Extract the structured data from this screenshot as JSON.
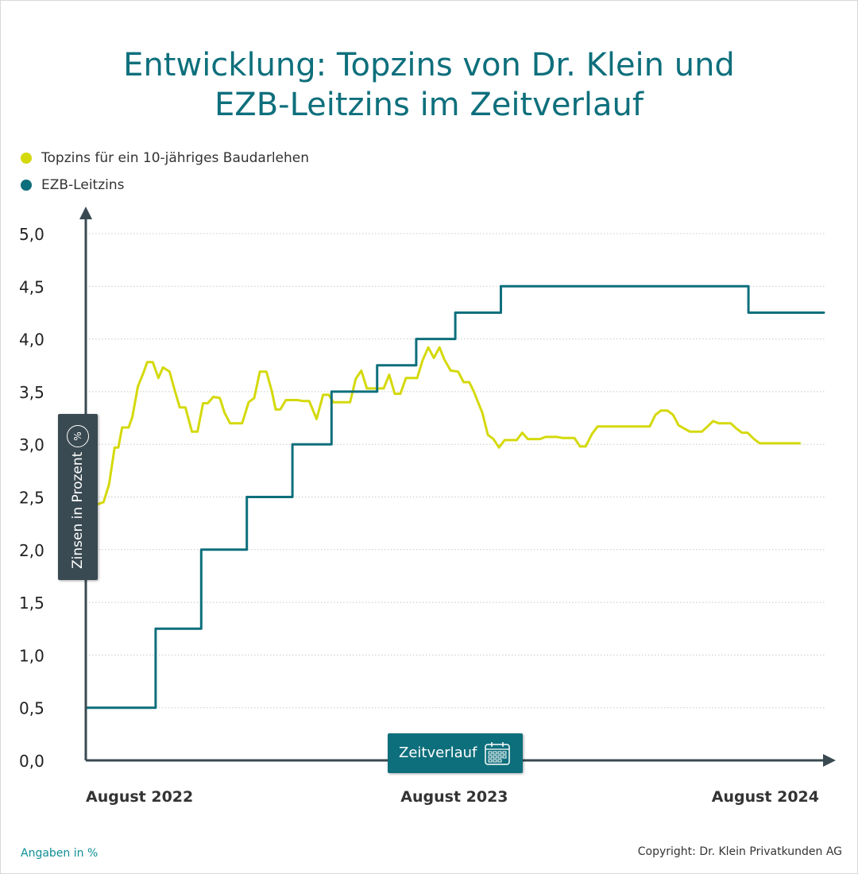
{
  "title": {
    "line1": "Entwicklung: Topzins von Dr. Klein und",
    "line2": "EZB-Leitzins im Zeitverlauf"
  },
  "footer": {
    "left": "Angaben in %",
    "right": "Copyright: Dr. Klein Privatkunden AG"
  },
  "calendar_icon": "calendar-icon",
  "percent_icon": "percent-icon",
  "chart_data": {
    "type": "line",
    "title": "Entwicklung: Topzins von Dr. Klein und EZB-Leitzins im Zeitverlauf",
    "xlabel": "Zeitverlauf",
    "ylabel": "Zinsen in Prozent",
    "ylim": [
      0,
      5
    ],
    "yticks": [
      "0,0",
      "0,5",
      "1,0",
      "1,5",
      "2,0",
      "2,5",
      "3,0",
      "3,5",
      "4,0",
      "4,5",
      "5,0"
    ],
    "xlim": [
      "2022-07-01",
      "2024-09-01"
    ],
    "xticks": [
      {
        "date": "2022-08-01",
        "label": "August 2022"
      },
      {
        "date": "2023-08-01",
        "label": "August 2023"
      },
      {
        "date": "2024-08-01",
        "label": "August 2024"
      }
    ],
    "grid": true,
    "legend": "top-left",
    "series": [
      {
        "name": "Topzins für ein 10-jähriges Baudarlehen",
        "color": "#d4d90b",
        "step": false,
        "x": [
          "2022-07-13",
          "2022-07-20",
          "2022-07-26",
          "2022-08-01",
          "2022-08-05",
          "2022-08-09",
          "2022-08-16",
          "2022-08-20",
          "2022-08-26",
          "2022-09-01",
          "2022-09-05",
          "2022-09-11",
          "2022-09-17",
          "2022-09-22",
          "2022-09-29",
          "2022-10-04",
          "2022-10-10",
          "2022-10-16",
          "2022-10-23",
          "2022-10-29",
          "2022-11-04",
          "2022-11-09",
          "2022-11-15",
          "2022-11-22",
          "2022-11-27",
          "2022-12-03",
          "2022-12-10",
          "2022-12-16",
          "2022-12-23",
          "2022-12-29",
          "2023-01-04",
          "2023-01-11",
          "2023-01-17",
          "2023-01-21",
          "2023-01-26",
          "2023-02-01",
          "2023-02-07",
          "2023-02-13",
          "2023-02-20",
          "2023-02-26",
          "2023-03-06",
          "2023-03-13",
          "2023-03-19",
          "2023-03-24",
          "2023-03-30",
          "2023-04-05",
          "2023-04-11",
          "2023-04-17",
          "2023-04-23",
          "2023-04-29",
          "2023-05-06",
          "2023-05-12",
          "2023-05-17",
          "2023-05-23",
          "2023-05-29",
          "2023-06-04",
          "2023-06-10",
          "2023-06-16",
          "2023-06-22",
          "2023-06-28",
          "2023-07-04",
          "2023-07-10",
          "2023-07-16",
          "2023-07-21",
          "2023-07-28",
          "2023-08-05",
          "2023-08-11",
          "2023-08-17",
          "2023-08-22",
          "2023-08-26",
          "2023-08-31",
          "2023-09-06",
          "2023-09-12",
          "2023-09-18",
          "2023-09-24",
          "2023-10-01",
          "2023-10-07",
          "2023-10-13",
          "2023-10-19",
          "2023-10-25",
          "2023-11-01",
          "2023-11-07",
          "2023-11-13",
          "2023-11-19",
          "2023-11-25",
          "2023-12-02",
          "2023-12-08",
          "2023-12-14",
          "2023-12-20",
          "2023-12-27",
          "2024-01-02",
          "2024-01-08",
          "2024-01-14",
          "2024-01-20",
          "2024-01-27",
          "2024-02-02",
          "2024-02-08",
          "2024-02-14",
          "2024-02-20",
          "2024-02-27",
          "2024-03-04",
          "2024-03-10",
          "2024-03-17",
          "2024-03-23",
          "2024-03-29",
          "2024-04-04",
          "2024-04-10",
          "2024-04-16",
          "2024-04-23",
          "2024-04-29",
          "2024-05-05",
          "2024-05-11",
          "2024-05-17",
          "2024-05-24",
          "2024-05-30",
          "2024-06-05",
          "2024-06-11",
          "2024-06-18",
          "2024-06-24",
          "2024-06-30",
          "2024-07-06",
          "2024-07-12",
          "2024-07-19",
          "2024-07-25",
          "2024-07-31",
          "2024-08-06"
        ],
        "y": [
          2.43,
          2.45,
          2.62,
          2.97,
          2.97,
          3.16,
          3.16,
          3.26,
          3.55,
          3.68,
          3.78,
          3.78,
          3.63,
          3.73,
          3.69,
          3.53,
          3.35,
          3.35,
          3.12,
          3.12,
          3.39,
          3.39,
          3.45,
          3.44,
          3.3,
          3.2,
          3.2,
          3.2,
          3.4,
          3.44,
          3.69,
          3.69,
          3.5,
          3.33,
          3.33,
          3.42,
          3.42,
          3.42,
          3.41,
          3.41,
          3.24,
          3.47,
          3.47,
          3.4,
          3.4,
          3.4,
          3.4,
          3.62,
          3.7,
          3.53,
          3.53,
          3.53,
          3.53,
          3.66,
          3.48,
          3.48,
          3.63,
          3.63,
          3.63,
          3.8,
          3.92,
          3.82,
          3.92,
          3.81,
          3.7,
          3.69,
          3.59,
          3.59,
          3.5,
          3.41,
          3.3,
          3.09,
          3.05,
          2.97,
          3.04,
          3.04,
          3.04,
          3.11,
          3.05,
          3.05,
          3.05,
          3.07,
          3.07,
          3.07,
          3.06,
          3.06,
          3.06,
          2.98,
          2.98,
          3.1,
          3.17,
          3.17,
          3.17,
          3.17,
          3.17,
          3.17,
          3.17,
          3.17,
          3.17,
          3.17,
          3.28,
          3.32,
          3.32,
          3.28,
          3.18,
          3.15,
          3.12,
          3.12,
          3.12,
          3.17,
          3.22,
          3.2,
          3.2,
          3.2,
          3.15,
          3.11,
          3.11,
          3.05,
          3.01,
          3.01,
          3.01,
          3.01,
          3.01,
          3.01,
          3.01,
          3.01
        ]
      },
      {
        "name": "EZB-Leitzins",
        "color": "#0e6f7c",
        "step": true,
        "x": [
          "2022-07-01",
          "2022-07-27",
          "2022-09-14",
          "2022-11-02",
          "2022-12-21",
          "2023-02-08",
          "2023-03-22",
          "2023-05-10",
          "2023-06-21",
          "2023-08-02",
          "2023-09-20",
          "2024-06-12",
          "2024-09-01"
        ],
        "y": [
          0.5,
          0.5,
          1.25,
          2.0,
          2.5,
          3.0,
          3.5,
          3.75,
          4.0,
          4.25,
          4.5,
          4.25,
          4.25
        ]
      }
    ]
  }
}
